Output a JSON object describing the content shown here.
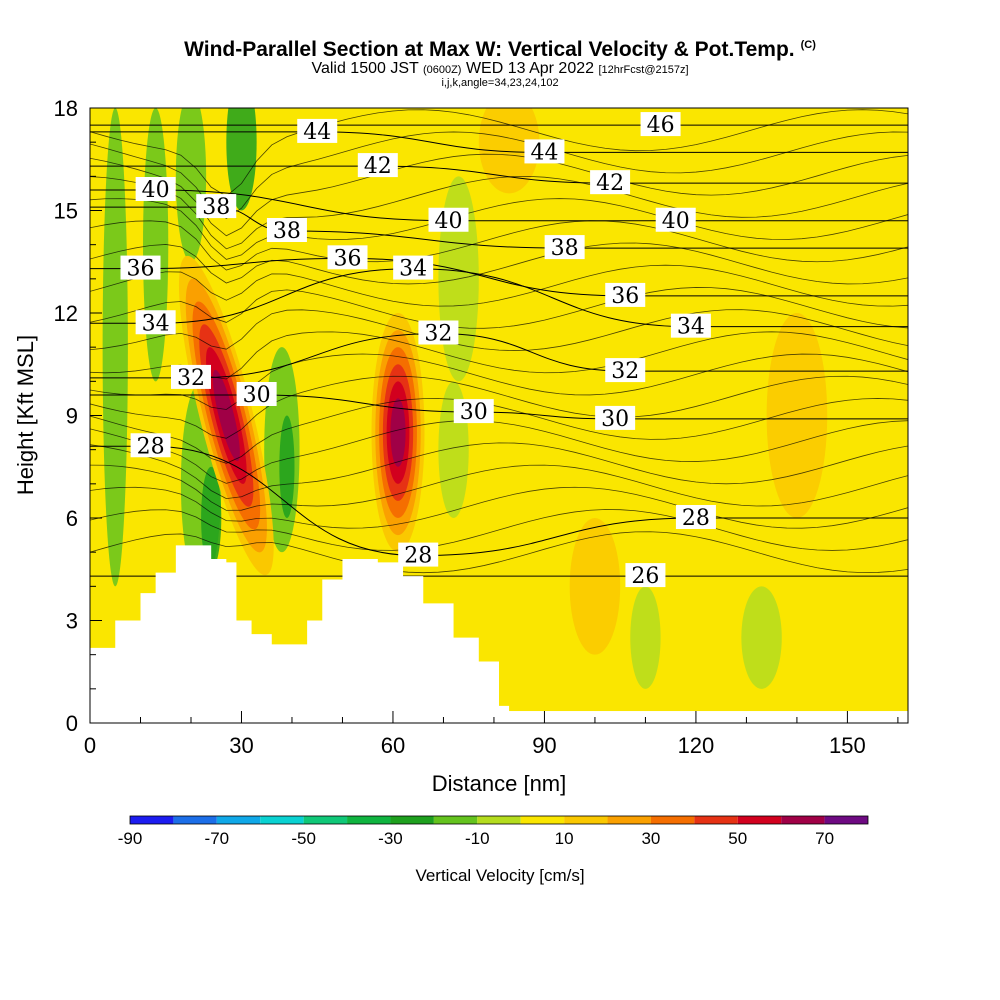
{
  "title": {
    "main": "Wind-Parallel Section at Max W: Vertical Velocity & Pot.Temp.",
    "copyright": "(C)",
    "valid_prefix": "Valid 1500 JST",
    "valid_utc": "(0600Z)",
    "valid_date": "WED 13 Apr 2022",
    "forecast": "[12hrFcst@2157z]",
    "params": "i,j,k,angle=34,23,24,102"
  },
  "chart_data": {
    "type": "heatmap",
    "xlabel": "Distance [nm]",
    "ylabel": "Height [Kft MSL]",
    "xlim": [
      0,
      162
    ],
    "ylim": [
      0,
      18
    ],
    "x_ticks": [
      0,
      30,
      60,
      90,
      120,
      150
    ],
    "y_ticks": [
      0,
      3,
      6,
      9,
      12,
      15,
      18
    ],
    "colorbar": {
      "title": "Vertical Velocity [cm/s]",
      "boundaries": [
        -90,
        -80,
        -70,
        -60,
        -50,
        -40,
        -30,
        -20,
        -10,
        0,
        10,
        20,
        30,
        40,
        50,
        60,
        70
      ],
      "labels": [
        -90,
        -70,
        -50,
        -30,
        -10,
        10,
        30,
        50,
        70
      ],
      "colors": [
        "#1c1cf0",
        "#1c6ee8",
        "#10a8e8",
        "#0ad2d2",
        "#10c878",
        "#10b440",
        "#1ea01e",
        "#64c31e",
        "#b4dc1e",
        "#fae600",
        "#fac800",
        "#faa000",
        "#f56e00",
        "#e63214",
        "#d2001e",
        "#a00046",
        "#6e0a82"
      ]
    },
    "updrafts": [
      {
        "x": 27,
        "y_range": [
          3.5,
          14.5
        ],
        "w_max": 70
      },
      {
        "x": 61,
        "y_range": [
          4.5,
          12.5
        ],
        "w_max": 70
      }
    ],
    "terrain_kft": [
      {
        "x": 0,
        "h": 2.2
      },
      {
        "x": 5,
        "h": 3.0
      },
      {
        "x": 10,
        "h": 3.8
      },
      {
        "x": 13,
        "h": 4.4
      },
      {
        "x": 17,
        "h": 5.2
      },
      {
        "x": 22,
        "h": 5.2
      },
      {
        "x": 24,
        "h": 4.8
      },
      {
        "x": 27,
        "h": 4.7
      },
      {
        "x": 29,
        "h": 3.0
      },
      {
        "x": 32,
        "h": 2.6
      },
      {
        "x": 36,
        "h": 2.3
      },
      {
        "x": 43,
        "h": 3.0
      },
      {
        "x": 46,
        "h": 4.2
      },
      {
        "x": 50,
        "h": 4.8
      },
      {
        "x": 53,
        "h": 4.8
      },
      {
        "x": 57,
        "h": 4.7
      },
      {
        "x": 62,
        "h": 4.3
      },
      {
        "x": 66,
        "h": 3.5
      },
      {
        "x": 72,
        "h": 2.5
      },
      {
        "x": 77,
        "h": 1.8
      },
      {
        "x": 81,
        "h": 0.5
      },
      {
        "x": 83,
        "h": 0.3
      }
    ],
    "isentropes": [
      {
        "theta": 26,
        "label_at": [
          110,
          4.3
        ]
      },
      {
        "theta": 28,
        "label_at": [
          65,
          4.9
        ]
      },
      {
        "theta": 28,
        "label_at": [
          12,
          8.1
        ]
      },
      {
        "theta": 28,
        "label_at": [
          120,
          6.0
        ]
      },
      {
        "theta": 30,
        "label_at": [
          33,
          9.6
        ]
      },
      {
        "theta": 30,
        "label_at": [
          76,
          9.1
        ]
      },
      {
        "theta": 30,
        "label_at": [
          104,
          8.9
        ]
      },
      {
        "theta": 32,
        "label_at": [
          20,
          10.1
        ]
      },
      {
        "theta": 32,
        "label_at": [
          69,
          11.4
        ]
      },
      {
        "theta": 32,
        "label_at": [
          106,
          10.3
        ]
      },
      {
        "theta": 34,
        "label_at": [
          13,
          11.7
        ]
      },
      {
        "theta": 34,
        "label_at": [
          64,
          13.3
        ]
      },
      {
        "theta": 34,
        "label_at": [
          119,
          11.6
        ]
      },
      {
        "theta": 36,
        "label_at": [
          10,
          13.3
        ]
      },
      {
        "theta": 36,
        "label_at": [
          51,
          13.6
        ]
      },
      {
        "theta": 36,
        "label_at": [
          106,
          12.5
        ]
      },
      {
        "theta": 38,
        "label_at": [
          25,
          15.1
        ]
      },
      {
        "theta": 38,
        "label_at": [
          39,
          14.4
        ]
      },
      {
        "theta": 38,
        "label_at": [
          94,
          13.9
        ]
      },
      {
        "theta": 40,
        "label_at": [
          13,
          15.6
        ]
      },
      {
        "theta": 40,
        "label_at": [
          71,
          14.7
        ]
      },
      {
        "theta": 40,
        "label_at": [
          116,
          14.7
        ]
      },
      {
        "theta": 42,
        "label_at": [
          57,
          16.3
        ]
      },
      {
        "theta": 42,
        "label_at": [
          103,
          15.8
        ]
      },
      {
        "theta": 44,
        "label_at": [
          45,
          17.3
        ]
      },
      {
        "theta": 44,
        "label_at": [
          90,
          16.7
        ]
      },
      {
        "theta": 46,
        "label_at": [
          113,
          17.5
        ]
      }
    ]
  }
}
